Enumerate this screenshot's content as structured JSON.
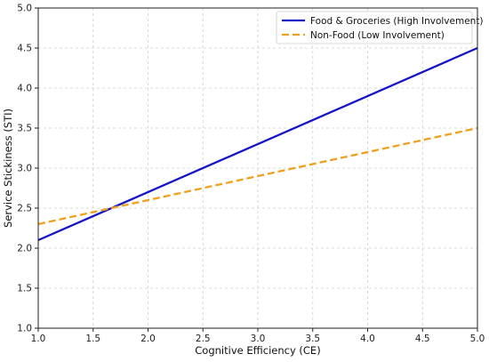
{
  "chart_data": {
    "type": "line",
    "title": "",
    "xlabel": "Cognitive Efficiency (CE)",
    "ylabel": "Service Stickiness (STI)",
    "xlim": [
      1.0,
      5.0
    ],
    "ylim": [
      1.0,
      5.0
    ],
    "x_ticks": [
      "1.0",
      "1.5",
      "2.0",
      "2.5",
      "3.0",
      "3.5",
      "4.0",
      "4.5",
      "5.0"
    ],
    "y_ticks": [
      "1.0",
      "1.5",
      "2.0",
      "2.5",
      "3.0",
      "3.5",
      "4.0",
      "4.5",
      "5.0"
    ],
    "grid": true,
    "legend_position": "top-right",
    "series": [
      {
        "name": "Food & Groceries (High Involvement)",
        "x": [
          1.0,
          5.0
        ],
        "y": [
          2.1,
          4.5
        ],
        "color": "#1414c8",
        "style": "solid"
      },
      {
        "name": "Non-Food (Low Involvement)",
        "x": [
          1.0,
          5.0
        ],
        "y": [
          2.3,
          3.5
        ],
        "color": "#f0a01e",
        "style": "dashed"
      }
    ]
  }
}
